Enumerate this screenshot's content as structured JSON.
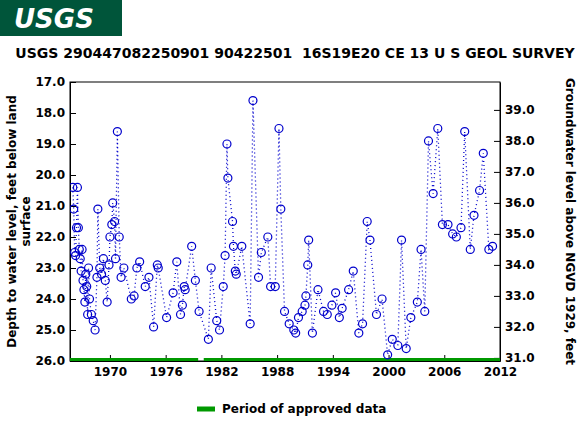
{
  "chart_data": {
    "type": "scatter",
    "logo": "USGS",
    "title": "USGS 290447082250901 90422501  16S19E20 CE 13 U S GEOL SURVEY",
    "ylabel": [
      "Depth to water level, feet below land",
      "surface"
    ],
    "y2label": "Groundwater level above NGVD 1929, feet",
    "xlim": [
      1965.7,
      2012
    ],
    "xticks": [
      1970,
      1976,
      1982,
      1988,
      1994,
      2000,
      2006,
      2012
    ],
    "ylim": [
      26,
      17
    ],
    "yticks": [
      {
        "value": 17,
        "label": "17.0"
      },
      {
        "value": 18,
        "label": "18.0"
      },
      {
        "value": 19,
        "label": "19.0"
      },
      {
        "value": 20,
        "label": "20.0"
      },
      {
        "value": 21,
        "label": "21.0"
      },
      {
        "value": 22,
        "label": "22.0"
      },
      {
        "value": 23,
        "label": "23.0"
      },
      {
        "value": 24,
        "label": "24.0"
      },
      {
        "value": 25,
        "label": "25.0"
      },
      {
        "value": 26,
        "label": "26.0"
      }
    ],
    "y2lim": [
      30.9,
      39.9
    ],
    "y2ticks": [
      {
        "value": 31,
        "label": "31.0"
      },
      {
        "value": 32,
        "label": "32.0"
      },
      {
        "value": 33,
        "label": "33.0"
      },
      {
        "value": 34,
        "label": "34.0"
      },
      {
        "value": 35,
        "label": "35.0"
      },
      {
        "value": 36,
        "label": "36.0"
      },
      {
        "value": 37,
        "label": "37.0"
      },
      {
        "value": 38,
        "label": "38.0"
      },
      {
        "value": 39,
        "label": "39.0"
      }
    ],
    "grid": false,
    "x": [
      1966.0,
      1966.1,
      1966.2,
      1966.3,
      1966.4,
      1966.5,
      1966.6,
      1966.7,
      1966.8,
      1966.9,
      1967.0,
      1967.1,
      1967.2,
      1967.3,
      1967.4,
      1967.5,
      1967.6,
      1967.7,
      1967.8,
      1968.0,
      1968.2,
      1968.4,
      1968.6,
      1968.7,
      1968.9,
      1969.1,
      1969.3,
      1969.5,
      1969.7,
      1969.9,
      1970.0,
      1970.2,
      1970.3,
      1970.5,
      1970.6,
      1970.8,
      1971.0,
      1971.2,
      1971.5,
      1972.3,
      1972.6,
      1972.9,
      1973.2,
      1973.8,
      1974.2,
      1974.7,
      1975.1,
      1975.2,
      1976.1,
      1976.8,
      1977.2,
      1977.6,
      1977.8,
      1978.0,
      1978.1,
      1978.8,
      1979.2,
      1979.6,
      1980.6,
      1980.9,
      1981.5,
      1981.8,
      1982.2,
      1982.4,
      1982.6,
      1982.7,
      1983.2,
      1983.3,
      1983.5,
      1983.6,
      1984.2,
      1985.1,
      1985.4,
      1986.0,
      1986.3,
      1987.0,
      1987.3,
      1987.8,
      1988.2,
      1988.4,
      1988.8,
      1989.3,
      1989.8,
      1990.0,
      1990.3,
      1990.7,
      1991.0,
      1991.1,
      1991.3,
      1991.4,
      1991.8,
      1992.4,
      1993.0,
      1993.4,
      1993.9,
      1994.3,
      1994.7,
      1995.0,
      1995.7,
      1996.2,
      1996.8,
      1997.2,
      1997.7,
      1998.0,
      1998.7,
      1999.3,
      1999.9,
      2000.4,
      2001.0,
      2001.4,
      2001.9,
      2002.4,
      2003.1,
      2003.5,
      2003.9,
      2004.3,
      2004.8,
      2005.3,
      2005.8,
      2006.4,
      2006.9,
      2007.3,
      2007.8,
      2008.2,
      2008.8,
      2009.2,
      2009.8,
      2010.2,
      2010.8,
      2011.2
    ],
    "series": [
      {
        "color": "#0000cc",
        "marker": "circle",
        "line_style": "dotted",
        "values": [
          20.4,
          21.1,
          22.5,
          22.6,
          21.7,
          20.4,
          21.7,
          22.4,
          22.7,
          23.1,
          22.4,
          23.4,
          23.7,
          24.1,
          23.2,
          23.6,
          24.5,
          23.0,
          24.0,
          24.5,
          24.7,
          25.0,
          23.3,
          21.1,
          23.0,
          23.2,
          22.7,
          23.4,
          24.1,
          22.9,
          22.0,
          21.6,
          20.9,
          21.5,
          22.7,
          18.6,
          22.0,
          23.3,
          23.0,
          24.0,
          23.9,
          23.0,
          22.8,
          23.6,
          23.3,
          24.9,
          22.9,
          23.0,
          24.6,
          23.8,
          22.8,
          24.5,
          24.2,
          23.6,
          23.7,
          22.3,
          23.4,
          24.4,
          25.3,
          23.0,
          24.7,
          25.0,
          23.6,
          22.6,
          19.0,
          20.1,
          21.5,
          22.3,
          23.1,
          23.2,
          22.3,
          24.8,
          17.6,
          23.3,
          22.5,
          22.0,
          23.6,
          23.6,
          18.5,
          21.1,
          24.4,
          24.8,
          25.0,
          25.1,
          24.6,
          24.4,
          24.2,
          23.9,
          22.9,
          22.1,
          25.1,
          23.7,
          24.4,
          24.5,
          24.2,
          23.8,
          24.6,
          24.3,
          23.7,
          23.1,
          25.1,
          24.8,
          21.5,
          22.1,
          24.5,
          24.0,
          25.8,
          25.3,
          25.5,
          22.1,
          25.6,
          24.6,
          24.1,
          22.4,
          24.4,
          18.9,
          20.6,
          18.5,
          21.6,
          21.6,
          21.9,
          22.0,
          21.7,
          18.6,
          22.4,
          21.3,
          20.5,
          19.3,
          22.4,
          22.3
        ]
      }
    ],
    "approved": {
      "label": "Period of approved data",
      "color": "#009900",
      "periods": [
        [
          1965.7,
          1979.5
        ],
        [
          1980.1,
          2012
        ]
      ]
    }
  }
}
